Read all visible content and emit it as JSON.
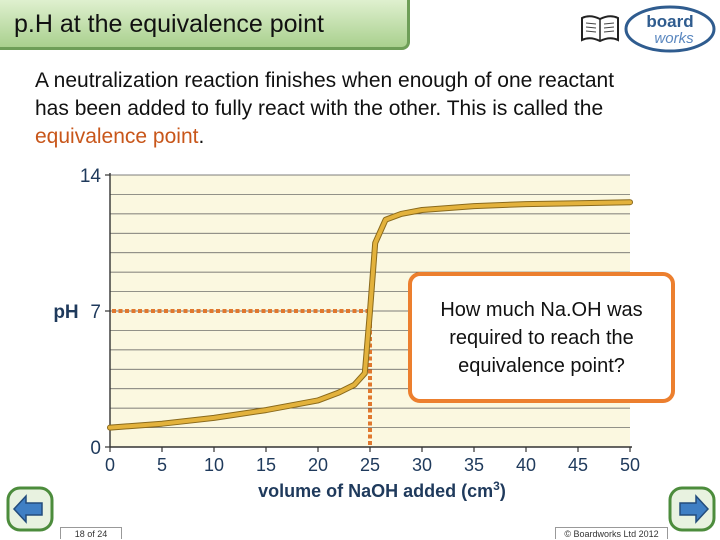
{
  "header": {
    "title": "p.H at the equivalence point",
    "logo_top": "board",
    "logo_bottom": "works"
  },
  "intro": {
    "line1": "A neutralization reaction finishes when enough of one reactant",
    "line2": "has been added to fully react with the other. This is called the",
    "highlight": "equivalence point",
    "end": "."
  },
  "callout": {
    "text": "How much Na.OH was required to reach the equivalence point?"
  },
  "footer": {
    "page": "18 of 24",
    "copyright": "© Boardworks Ltd 2012"
  },
  "colors": {
    "curve": "#e3b23c",
    "guide": "#e0782e",
    "plot_bg": "#fbf8e0",
    "callout_border": "#ec7f2e",
    "highlight": "#c8561a"
  },
  "chart_data": {
    "type": "line",
    "xlabel": "volume of NaOH added (cm",
    "xlabel_sup": "3",
    "xlabel_end": ")",
    "ylabel": "pH",
    "xlim": [
      0,
      50
    ],
    "ylim": [
      0,
      14
    ],
    "x_ticks": [
      0,
      5,
      10,
      15,
      20,
      25,
      30,
      35,
      40,
      45,
      50
    ],
    "y_ticks": [
      0,
      7,
      14
    ],
    "grid": true,
    "series": [
      {
        "x": [
          0,
          5,
          10,
          15,
          20,
          22,
          23.5,
          24.5,
          25,
          25.5,
          26.5,
          28,
          30,
          35,
          40,
          45,
          50
        ],
        "y": [
          1.0,
          1.2,
          1.5,
          1.9,
          2.4,
          2.8,
          3.2,
          3.8,
          7.0,
          10.5,
          11.7,
          12.0,
          12.2,
          12.4,
          12.5,
          12.55,
          12.6
        ]
      }
    ],
    "equivalence": {
      "x": 25,
      "y": 7
    }
  }
}
